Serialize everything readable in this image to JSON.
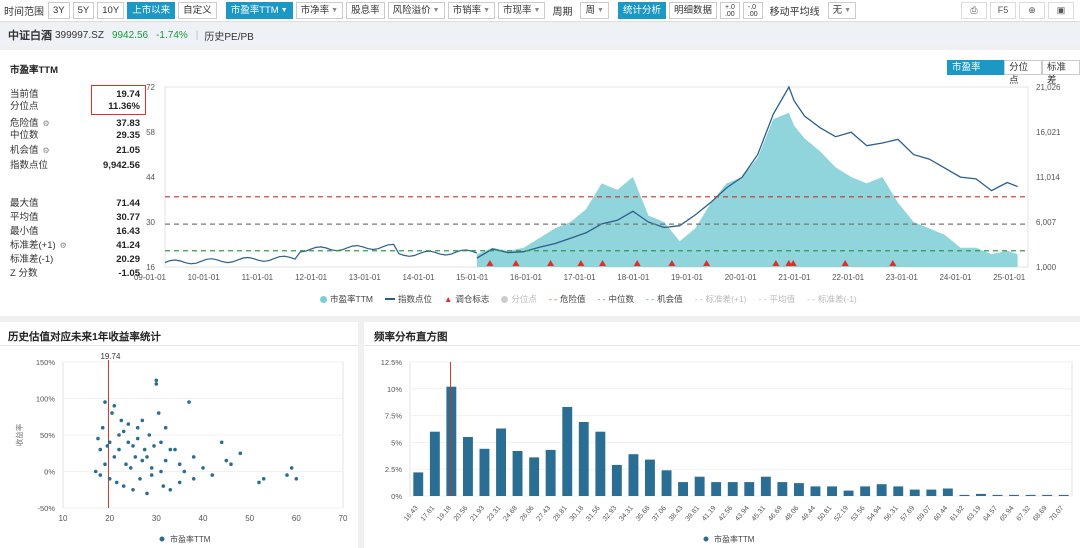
{
  "toolbar": {
    "time_label": "时间范围",
    "ranges": [
      "3Y",
      "5Y",
      "10Y",
      "上市以来",
      "自定义"
    ],
    "indicators": [
      "市盈率TTM",
      "市净率",
      "股息率",
      "风险溢价",
      "市销率",
      "市现率"
    ],
    "period_label": "周期",
    "period_value": "周",
    "analysis_buttons": [
      "统计分析",
      "明细数据"
    ],
    "ma_label": "移动平均线",
    "ma_value": "无",
    "right_icons": [
      "export-icon",
      "F5",
      "plus-circle-icon",
      "image-icon"
    ],
    "f5_label": "F5"
  },
  "header": {
    "name": "中证白酒",
    "code": "399997.SZ",
    "price": "9942.56",
    "change": "-1.74%",
    "sub": "历史PE/PB"
  },
  "main_chart": {
    "title": "市盈率TTM",
    "tabs": [
      "市盈率TTM",
      "分位点",
      "标准差"
    ],
    "stats": [
      {
        "label": "当前值",
        "value": "19.74"
      },
      {
        "label": "分位点",
        "value": "11.36%"
      },
      {
        "label": "危险值",
        "value": "37.83",
        "gear": true
      },
      {
        "label": "中位数",
        "value": "29.35"
      },
      {
        "label": "机会值",
        "value": "21.05",
        "gear": true
      },
      {
        "label": "指数点位",
        "value": "9,942.56"
      },
      {
        "label": "最大值",
        "value": "71.44"
      },
      {
        "label": "平均值",
        "value": "30.77"
      },
      {
        "label": "最小值",
        "value": "16.43"
      },
      {
        "label": "标准差(+1)",
        "value": "41.24",
        "gear": true
      },
      {
        "label": "标准差(-1)",
        "value": "20.29"
      },
      {
        "label": "Z 分数",
        "value": "-1.05"
      }
    ],
    "gear_symbol": "⚙",
    "y_left_ticks": [
      "72",
      "58",
      "44",
      "30",
      "16"
    ],
    "y_right_ticks": [
      "21,026",
      "16,021",
      "11,014",
      "6,007",
      "1,000"
    ],
    "x_ticks": [
      "09-01-01",
      "10-01-01",
      "11-01-01",
      "12-01-01",
      "13-01-01",
      "14-01-01",
      "15-01-01",
      "16-01-01",
      "17-01-01",
      "18-01-01",
      "19-01-01",
      "20-01-01",
      "21-01-01",
      "22-01-01",
      "23-01-01",
      "24-01-01",
      "25-01-01"
    ],
    "legend": [
      "市盈率TTM",
      "指数点位",
      "调仓标志",
      "分位点",
      "危险值",
      "中位数",
      "机会值",
      "标准差(+1)",
      "平均值",
      "标准差(-1)"
    ],
    "colors": {
      "pe_area": "#7ccdd6",
      "index_line": "#2a5f8c",
      "danger": "#c0392b",
      "median": "#777777",
      "opportunity": "#2e9d4a",
      "marker": "#d9322b"
    }
  },
  "scatter_chart": {
    "title": "历史估值对应未来1年收益率统计",
    "marker_label": "19.74",
    "y_label": "收益率",
    "y_ticks": [
      "150%",
      "100%",
      "50%",
      "0%",
      "-50%"
    ],
    "x_ticks": [
      "10",
      "20",
      "30",
      "40",
      "50",
      "60",
      "70"
    ],
    "legend": "市盈率TTM"
  },
  "histogram": {
    "title": "频率分布直方图",
    "y_ticks": [
      "12.5%",
      "10%",
      "7.5%",
      "5%",
      "2.5%",
      "0%"
    ],
    "legend": "市盈率TTM"
  },
  "chart_data": [
    {
      "type": "area",
      "title": "市盈率TTM",
      "x_ticks": [
        "09-01-01",
        "10-01-01",
        "11-01-01",
        "12-01-01",
        "13-01-01",
        "14-01-01",
        "15-01-01",
        "16-01-01",
        "17-01-01",
        "18-01-01",
        "19-01-01",
        "20-01-01",
        "21-01-01",
        "22-01-01",
        "23-01-01",
        "24-01-01",
        "25-01-01"
      ],
      "ylim_left": [
        16,
        72
      ],
      "ylim_right": [
        1000,
        21026
      ],
      "x": [
        2015.0,
        2015.3,
        2015.6,
        2015.9,
        2016.2,
        2016.5,
        2016.8,
        2017.1,
        2017.4,
        2017.7,
        2018.0,
        2018.3,
        2018.6,
        2018.9,
        2019.2,
        2019.5,
        2019.8,
        2020.1,
        2020.4,
        2020.7,
        2021.0,
        2021.1,
        2021.3,
        2021.6,
        2021.9,
        2022.2,
        2022.5,
        2022.8,
        2023.1,
        2023.4,
        2023.7,
        2024.0,
        2024.3,
        2024.6,
        2024.9,
        2025.2,
        2025.4
      ],
      "series": [
        {
          "name": "市盈率TTM",
          "values": [
            20,
            22,
            21,
            22,
            25,
            28,
            30,
            34,
            42,
            40,
            44,
            32,
            30,
            24,
            28,
            36,
            42,
            44,
            50,
            62,
            64,
            60,
            56,
            52,
            47,
            44,
            42,
            44,
            36,
            30,
            28,
            26,
            22,
            22,
            20,
            21,
            20
          ]
        },
        {
          "name": "指数点位",
          "values": [
            2000,
            3000,
            2600,
            2700,
            3200,
            3600,
            4200,
            4800,
            5800,
            6200,
            7200,
            6000,
            5400,
            5600,
            6800,
            8200,
            9800,
            11000,
            13500,
            18000,
            21026,
            19500,
            17800,
            16500,
            15500,
            16000,
            14500,
            14800,
            15200,
            13500,
            13000,
            12000,
            11000,
            10800,
            9500,
            10400,
            9943
          ]
        }
      ],
      "hlines": {
        "危险值": 37.83,
        "中位数": 29.35,
        "机会值": 21.05
      },
      "rebalance_markers": [
        "2015-04",
        "2015-10",
        "2016-06",
        "2017-01",
        "2017-06",
        "2018-02",
        "2018-10",
        "2019-06",
        "2020-10",
        "2021-01",
        "2021-02",
        "2022-02",
        "2023-01"
      ]
    },
    {
      "type": "scatter",
      "title": "历史估值对应未来1年收益率统计",
      "xlabel": "",
      "ylabel": "收益率",
      "xlim": [
        10,
        70
      ],
      "ylim": [
        -50,
        150
      ],
      "x": [
        17,
        17.5,
        18,
        18,
        18.5,
        19,
        19,
        19.5,
        20,
        20,
        20.5,
        21,
        21,
        21.5,
        22,
        22,
        22.5,
        23,
        23,
        23.5,
        24,
        24,
        24.5,
        25,
        25,
        25.5,
        26,
        26,
        26.5,
        27,
        27,
        27.5,
        28,
        28,
        28.5,
        29,
        29,
        29.5,
        30,
        30,
        30.5,
        31,
        31,
        31.5,
        32,
        32,
        33,
        33,
        34,
        35,
        35,
        36,
        37,
        38,
        38,
        40,
        42,
        44,
        45,
        46,
        48,
        52,
        53,
        58,
        59,
        60
      ],
      "y": [
        0,
        45,
        -5,
        30,
        60,
        95,
        10,
        35,
        -10,
        40,
        80,
        90,
        20,
        -15,
        50,
        30,
        70,
        55,
        -20,
        10,
        40,
        65,
        5,
        35,
        -25,
        20,
        60,
        45,
        -10,
        15,
        70,
        30,
        -30,
        20,
        50,
        5,
        -5,
        35,
        120,
        125,
        80,
        40,
        0,
        -20,
        60,
        15,
        30,
        -25,
        30,
        10,
        -15,
        0,
        95,
        20,
        -10,
        5,
        -5,
        40,
        15,
        10,
        25,
        -15,
        -10,
        -5,
        5,
        -10
      ]
    },
    {
      "type": "bar",
      "title": "频率分布直方图",
      "categories": [
        "16.43",
        "17.81",
        "19.18",
        "20.56",
        "21.93",
        "23.31",
        "24.68",
        "26.06",
        "27.43",
        "28.81",
        "30.18",
        "31.56",
        "32.93",
        "34.31",
        "35.68",
        "37.06",
        "38.43",
        "39.81",
        "41.19",
        "42.56",
        "43.94",
        "45.31",
        "46.69",
        "48.06",
        "49.44",
        "50.81",
        "52.19",
        "53.56",
        "54.94",
        "56.31",
        "57.69",
        "59.07",
        "60.44",
        "61.82",
        "63.19",
        "64.57",
        "65.94",
        "67.32",
        "68.69",
        "70.07"
      ],
      "values": [
        2.2,
        6.0,
        10.2,
        5.5,
        4.4,
        6.3,
        4.2,
        3.6,
        4.3,
        8.3,
        6.9,
        6.0,
        2.9,
        3.9,
        3.4,
        2.4,
        1.3,
        1.8,
        1.3,
        1.3,
        1.3,
        1.8,
        1.3,
        1.2,
        0.9,
        0.9,
        0.5,
        0.9,
        1.1,
        0.9,
        0.6,
        0.6,
        0.7,
        0.1,
        0.2,
        0.1,
        0.1,
        0.1,
        0.1,
        0.1
      ],
      "ylim": [
        0,
        12.5
      ],
      "series": [
        {
          "name": "市盈率TTM",
          "values": [
            2.2,
            6.0,
            10.2,
            5.5,
            4.4,
            6.3,
            4.2,
            3.6,
            4.3,
            8.3,
            6.9,
            6.0,
            2.9,
            3.9,
            3.4,
            2.4,
            1.3,
            1.8,
            1.3,
            1.3,
            1.3,
            1.8,
            1.3,
            1.2,
            0.9,
            0.9,
            0.5,
            0.9,
            1.1,
            0.9,
            0.6,
            0.6,
            0.7,
            0.1,
            0.2,
            0.1,
            0.1,
            0.1,
            0.1,
            0.1
          ]
        }
      ],
      "marker_at": "19.74"
    }
  ]
}
